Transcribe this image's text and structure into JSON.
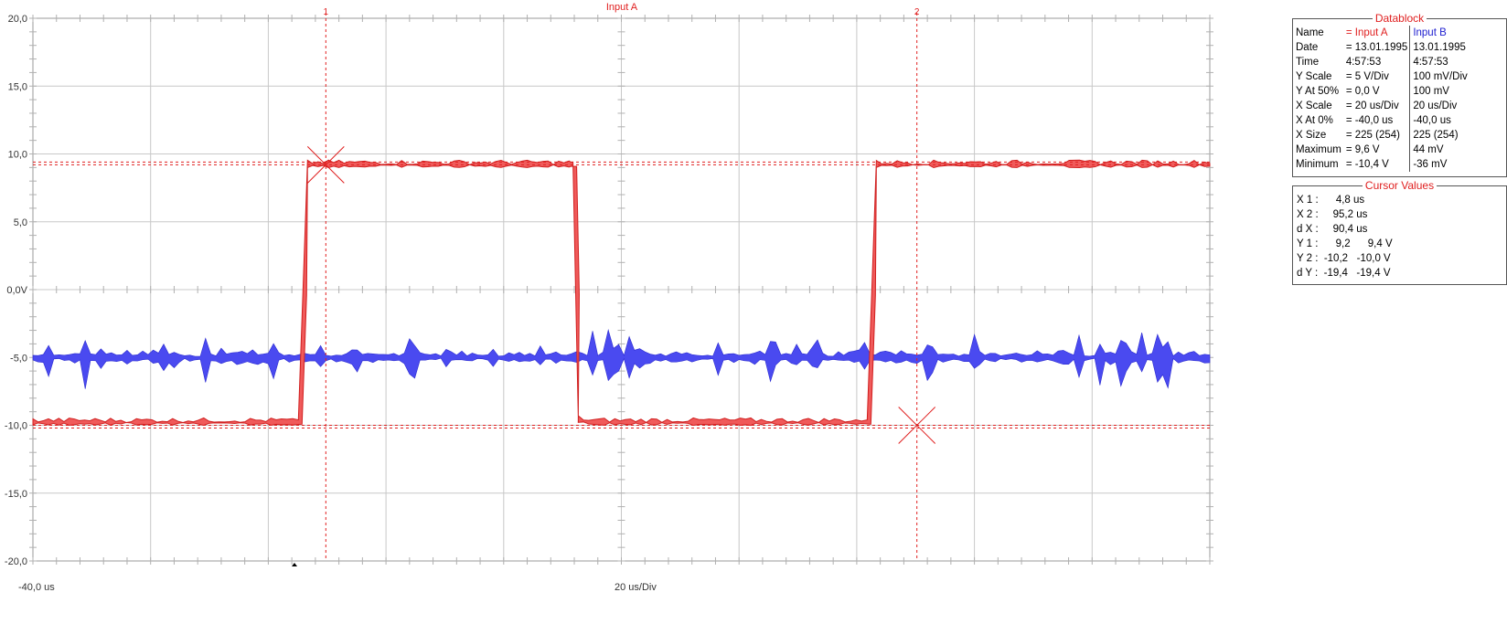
{
  "chart_data": {
    "type": "line",
    "title": "Input A",
    "xlabel": "20 us/Div",
    "x_start_label": "-40,0 us",
    "xlim": [
      -40,
      140
    ],
    "ylim": [
      -20,
      20
    ],
    "yticks": [
      "20,0",
      "15,0",
      "10,0",
      "5,0",
      "0,0V",
      "-5,0",
      "-10,0",
      "-15,0",
      "-20,0"
    ],
    "grid": true,
    "series": [
      {
        "name": "Input A",
        "color": "#f05a5a",
        "units": "V",
        "x": [
          -40,
          -2,
          0.6,
          2,
          42,
          42.6,
          43.4,
          45,
          85,
          87.6,
          89,
          140
        ],
        "y": [
          -9.8,
          -9.8,
          -9.8,
          9.2,
          9.2,
          9.2,
          -9.6,
          -9.8,
          -9.8,
          -9.8,
          9.2,
          9.2
        ]
      },
      {
        "name": "Input B",
        "color": "#4a4af0",
        "units": "mV",
        "note": "noisy trace around -5 V display level",
        "x": [
          -40,
          140
        ],
        "y": [
          -5,
          -5
        ]
      }
    ],
    "cursors": {
      "x1": {
        "label": "1",
        "value": 4.8
      },
      "x2": {
        "label": "2",
        "value": 95.2
      },
      "y1": {
        "a": 9.2,
        "b": 9.4
      },
      "y2": {
        "a": -10.2,
        "b": -10.0
      }
    }
  },
  "datablock": {
    "title": "Datablock",
    "rows": [
      {
        "label": "Name",
        "a": "= Input A",
        "b": "Input B"
      },
      {
        "label": "Date",
        "a": "= 13.01.1995",
        "b": "13.01.1995"
      },
      {
        "label": "Time",
        "a": "4:57:53",
        "b": "4:57:53"
      },
      {
        "label": "Y Scale",
        "a": "= 5 V/Div",
        "b": "100 mV/Div"
      },
      {
        "label": "Y At 50%",
        "a": "= 0,0 V",
        "b": "100 mV"
      },
      {
        "label": "X Scale",
        "a": "= 20 us/Div",
        "b": "20 us/Div"
      },
      {
        "label": "X At 0%",
        "a": "= -40,0 us",
        "b": "-40,0 us"
      },
      {
        "label": "X Size",
        "a": "= 225 (254)",
        "b": "225 (254)"
      },
      {
        "label": "Maximum",
        "a": "= 9,6 V",
        "b": "44 mV"
      },
      {
        "label": "Minimum",
        "a": "= -10,4 V",
        "b": "-36 mV"
      }
    ]
  },
  "cursor_values": {
    "title": "Cursor Values",
    "rows": [
      "X 1 :      4,8 us",
      "X 2 :     95,2 us",
      "d X :     90,4 us",
      "Y 1 :      9,2      9,4 V",
      "Y 2 :  -10,2   -10,0 V",
      "d Y :  -19,4   -19,4 V"
    ]
  }
}
